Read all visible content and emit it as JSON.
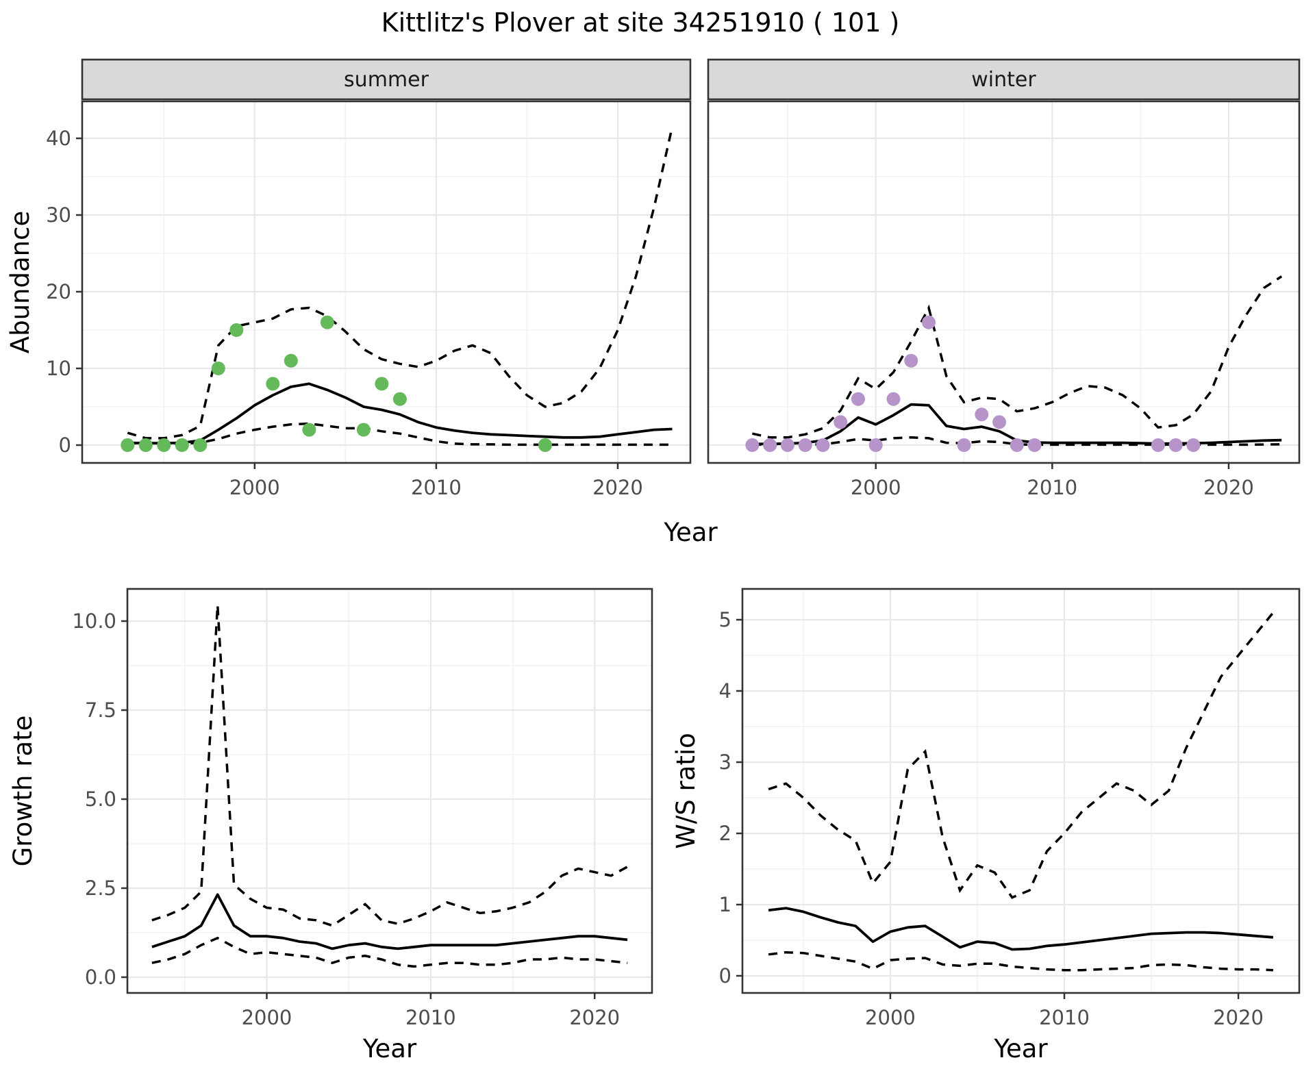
{
  "title": "Kittlitz's Plover at site 34251910 ( 101 )",
  "chart_data": {
    "type": "line",
    "title": "Kittlitz's Plover at site 34251910 ( 101 )",
    "shared_x_label": "Year",
    "colors": {
      "summer_points": "#64B95A",
      "winter_points": "#B694CA",
      "line": "#000000",
      "strip_fill": "#D9D9D9",
      "panel_border": "#333333",
      "grid_major": "#E8E8E8",
      "grid_minor": "#F2F2F2",
      "tick_label": "#4D4D4D"
    },
    "line_styles": {
      "fit": "solid",
      "interval": "dashed"
    },
    "panels": [
      {
        "id": "abundance_summer",
        "kind": "facet",
        "strip_label": "summer",
        "ylabel": "Abundance",
        "xlabel": "Year",
        "x_ticks": [
          2000,
          2010,
          2020
        ],
        "x_minor": [
          1995,
          2005,
          2015
        ],
        "y_ticks": [
          {
            "v": 0,
            "label": "0"
          },
          {
            "v": 10,
            "label": "10"
          },
          {
            "v": 20,
            "label": "20"
          },
          {
            "v": 30,
            "label": "30"
          },
          {
            "v": 40,
            "label": "40"
          }
        ],
        "y_minor": [
          5,
          15,
          25,
          35
        ],
        "years": [
          1993,
          1994,
          1995,
          1996,
          1997,
          1998,
          1999,
          2000,
          2001,
          2002,
          2003,
          2004,
          2005,
          2006,
          2007,
          2008,
          2009,
          2010,
          2011,
          2012,
          2013,
          2014,
          2015,
          2016,
          2017,
          2018,
          2019,
          2020,
          2021,
          2022,
          2023
        ],
        "fit": [
          0.3,
          0.25,
          0.25,
          0.3,
          0.6,
          2.0,
          3.5,
          5.2,
          6.5,
          7.6,
          8.0,
          7.2,
          6.2,
          5.0,
          4.6,
          4.0,
          3.0,
          2.3,
          1.9,
          1.6,
          1.4,
          1.3,
          1.2,
          1.1,
          1.0,
          1.0,
          1.1,
          1.4,
          1.7,
          2.0,
          2.1
        ],
        "hi": [
          1.6,
          0.9,
          0.9,
          1.3,
          2.5,
          13.0,
          15.5,
          16.0,
          16.5,
          17.7,
          17.9,
          16.8,
          14.8,
          12.5,
          11.2,
          10.6,
          10.2,
          11.0,
          12.3,
          13.0,
          12.0,
          9.0,
          6.5,
          5.0,
          5.5,
          7.0,
          10.0,
          15.0,
          22.0,
          31.0,
          41.5
        ],
        "lo": [
          0.3,
          0.15,
          0.15,
          0.2,
          0.3,
          0.8,
          1.5,
          2.0,
          2.4,
          2.7,
          2.8,
          2.5,
          2.2,
          2.2,
          1.8,
          1.5,
          1.0,
          0.5,
          0.2,
          0.1,
          0.1,
          0.05,
          0.05,
          0.05,
          0.05,
          0.05,
          0.05,
          0.05,
          0.05,
          0.05,
          0.05
        ],
        "points": [
          [
            1993,
            0
          ],
          [
            1994,
            0
          ],
          [
            1995,
            0
          ],
          [
            1996,
            0
          ],
          [
            1997,
            0
          ],
          [
            1998,
            10
          ],
          [
            1999,
            15
          ],
          [
            2001,
            8
          ],
          [
            2002,
            11
          ],
          [
            2003,
            2
          ],
          [
            2004,
            16
          ],
          [
            2006,
            2
          ],
          [
            2007,
            8
          ],
          [
            2008,
            6
          ],
          [
            2016,
            0
          ]
        ],
        "point_color": "#64B95A"
      },
      {
        "id": "abundance_winter",
        "kind": "facet",
        "strip_label": "winter",
        "ylabel": "",
        "xlabel": "Year",
        "x_ticks": [
          2000,
          2010,
          2020
        ],
        "x_minor": [
          1995,
          2005,
          2015
        ],
        "y_ticks": [],
        "y_minor": [
          5,
          15,
          25,
          35
        ],
        "y_grid_major": [
          0,
          10,
          20,
          30,
          40
        ],
        "years": [
          1993,
          1994,
          1995,
          1996,
          1997,
          1998,
          1999,
          2000,
          2001,
          2002,
          2003,
          2004,
          2005,
          2006,
          2007,
          2008,
          2009,
          2010,
          2011,
          2012,
          2013,
          2014,
          2015,
          2016,
          2017,
          2018,
          2019,
          2020,
          2021,
          2022,
          2023
        ],
        "fit": [
          0.15,
          0.15,
          0.2,
          0.3,
          0.6,
          1.8,
          3.6,
          2.7,
          3.9,
          5.3,
          5.2,
          2.5,
          2.1,
          2.4,
          1.8,
          0.6,
          0.35,
          0.3,
          0.3,
          0.3,
          0.3,
          0.3,
          0.25,
          0.2,
          0.2,
          0.25,
          0.3,
          0.4,
          0.5,
          0.6,
          0.65
        ],
        "hi": [
          1.5,
          1.0,
          1.0,
          1.4,
          2.2,
          4.5,
          8.7,
          7.3,
          9.5,
          13.5,
          17.9,
          9.0,
          5.6,
          6.2,
          6.0,
          4.4,
          4.8,
          5.6,
          6.8,
          7.7,
          7.5,
          6.5,
          4.8,
          2.3,
          2.6,
          4.0,
          7.0,
          12.8,
          17.0,
          20.5,
          22.0
        ],
        "lo": [
          0.05,
          0.05,
          0.05,
          0.05,
          0.1,
          0.4,
          0.8,
          0.6,
          0.9,
          1.0,
          0.9,
          0.3,
          0.25,
          0.5,
          0.4,
          0.1,
          0.05,
          0.05,
          0.05,
          0.05,
          0.05,
          0.05,
          0.05,
          0.05,
          0.05,
          0.05,
          0.05,
          0.05,
          0.05,
          0.08,
          0.1
        ],
        "points": [
          [
            1993,
            0
          ],
          [
            1994,
            0
          ],
          [
            1995,
            0
          ],
          [
            1996,
            0
          ],
          [
            1997,
            0
          ],
          [
            1998,
            3
          ],
          [
            1999,
            6
          ],
          [
            2000,
            0
          ],
          [
            2001,
            6
          ],
          [
            2002,
            11
          ],
          [
            2003,
            16
          ],
          [
            2005,
            0
          ],
          [
            2006,
            4
          ],
          [
            2007,
            3
          ],
          [
            2008,
            0
          ],
          [
            2009,
            0
          ],
          [
            2016,
            0
          ],
          [
            2017,
            0
          ],
          [
            2018,
            0
          ]
        ],
        "point_color": "#B694CA"
      },
      {
        "id": "growth_rate",
        "kind": "plain",
        "ylabel": "Growth rate",
        "xlabel": "Year",
        "x_ticks": [
          2000,
          2010,
          2020
        ],
        "x_minor": [
          1995,
          2005,
          2015
        ],
        "y_ticks": [
          {
            "v": 0,
            "label": "0.0"
          },
          {
            "v": 2.5,
            "label": "2.5"
          },
          {
            "v": 5,
            "label": "5.0"
          },
          {
            "v": 7.5,
            "label": "7.5"
          },
          {
            "v": 10,
            "label": "10.0"
          }
        ],
        "y_minor": [
          1.25,
          3.75,
          6.25,
          8.75
        ],
        "years": [
          1993,
          1994,
          1995,
          1996,
          1997,
          1998,
          1999,
          2000,
          2001,
          2002,
          2003,
          2004,
          2005,
          2006,
          2007,
          2008,
          2009,
          2010,
          2011,
          2012,
          2013,
          2014,
          2015,
          2016,
          2017,
          2018,
          2019,
          2020,
          2021,
          2022
        ],
        "fit": [
          0.85,
          1.0,
          1.15,
          1.45,
          2.32,
          1.45,
          1.15,
          1.15,
          1.1,
          1.0,
          0.95,
          0.8,
          0.9,
          0.95,
          0.85,
          0.8,
          0.85,
          0.9,
          0.9,
          0.9,
          0.9,
          0.9,
          0.95,
          1.0,
          1.05,
          1.1,
          1.15,
          1.15,
          1.1,
          1.05
        ],
        "hi": [
          1.6,
          1.75,
          1.95,
          2.4,
          10.45,
          2.6,
          2.2,
          1.95,
          1.9,
          1.65,
          1.6,
          1.45,
          1.75,
          2.05,
          1.6,
          1.5,
          1.65,
          1.85,
          2.1,
          1.95,
          1.8,
          1.85,
          1.95,
          2.1,
          2.4,
          2.85,
          3.05,
          2.95,
          2.85,
          3.1
        ],
        "lo": [
          0.4,
          0.5,
          0.65,
          0.9,
          1.1,
          0.85,
          0.65,
          0.7,
          0.65,
          0.6,
          0.55,
          0.4,
          0.55,
          0.6,
          0.5,
          0.35,
          0.3,
          0.35,
          0.4,
          0.4,
          0.35,
          0.35,
          0.4,
          0.5,
          0.5,
          0.55,
          0.5,
          0.5,
          0.45,
          0.4
        ],
        "points": [],
        "point_color": ""
      },
      {
        "id": "ws_ratio",
        "kind": "plain",
        "ylabel": "W/S ratio",
        "xlabel": "Year",
        "x_ticks": [
          2000,
          2010,
          2020
        ],
        "x_minor": [
          1995,
          2005,
          2015
        ],
        "y_ticks": [
          {
            "v": 0,
            "label": "0"
          },
          {
            "v": 1,
            "label": "1"
          },
          {
            "v": 2,
            "label": "2"
          },
          {
            "v": 3,
            "label": "3"
          },
          {
            "v": 4,
            "label": "4"
          },
          {
            "v": 5,
            "label": "5"
          }
        ],
        "y_minor": [
          0.5,
          1.5,
          2.5,
          3.5,
          4.5
        ],
        "years": [
          1993,
          1994,
          1995,
          1996,
          1997,
          1998,
          1999,
          2000,
          2001,
          2002,
          2003,
          2004,
          2005,
          2006,
          2007,
          2008,
          2009,
          2010,
          2011,
          2012,
          2013,
          2014,
          2015,
          2016,
          2017,
          2018,
          2019,
          2020,
          2021,
          2022
        ],
        "fit": [
          0.92,
          0.95,
          0.9,
          0.82,
          0.75,
          0.7,
          0.48,
          0.62,
          0.68,
          0.7,
          0.55,
          0.4,
          0.48,
          0.46,
          0.37,
          0.38,
          0.42,
          0.44,
          0.47,
          0.5,
          0.53,
          0.56,
          0.59,
          0.6,
          0.61,
          0.61,
          0.6,
          0.58,
          0.56,
          0.54
        ],
        "hi": [
          2.62,
          2.7,
          2.5,
          2.25,
          2.05,
          1.9,
          1.3,
          1.6,
          2.9,
          3.15,
          1.95,
          1.2,
          1.55,
          1.45,
          1.1,
          1.2,
          1.75,
          2.0,
          2.3,
          2.5,
          2.7,
          2.6,
          2.4,
          2.6,
          3.2,
          3.7,
          4.2,
          4.5,
          4.8,
          5.1
        ],
        "lo": [
          0.3,
          0.33,
          0.32,
          0.28,
          0.24,
          0.2,
          0.1,
          0.22,
          0.24,
          0.25,
          0.16,
          0.14,
          0.17,
          0.17,
          0.13,
          0.11,
          0.09,
          0.08,
          0.08,
          0.09,
          0.1,
          0.11,
          0.15,
          0.16,
          0.15,
          0.12,
          0.1,
          0.09,
          0.09,
          0.08
        ],
        "points": [],
        "point_color": ""
      }
    ]
  }
}
